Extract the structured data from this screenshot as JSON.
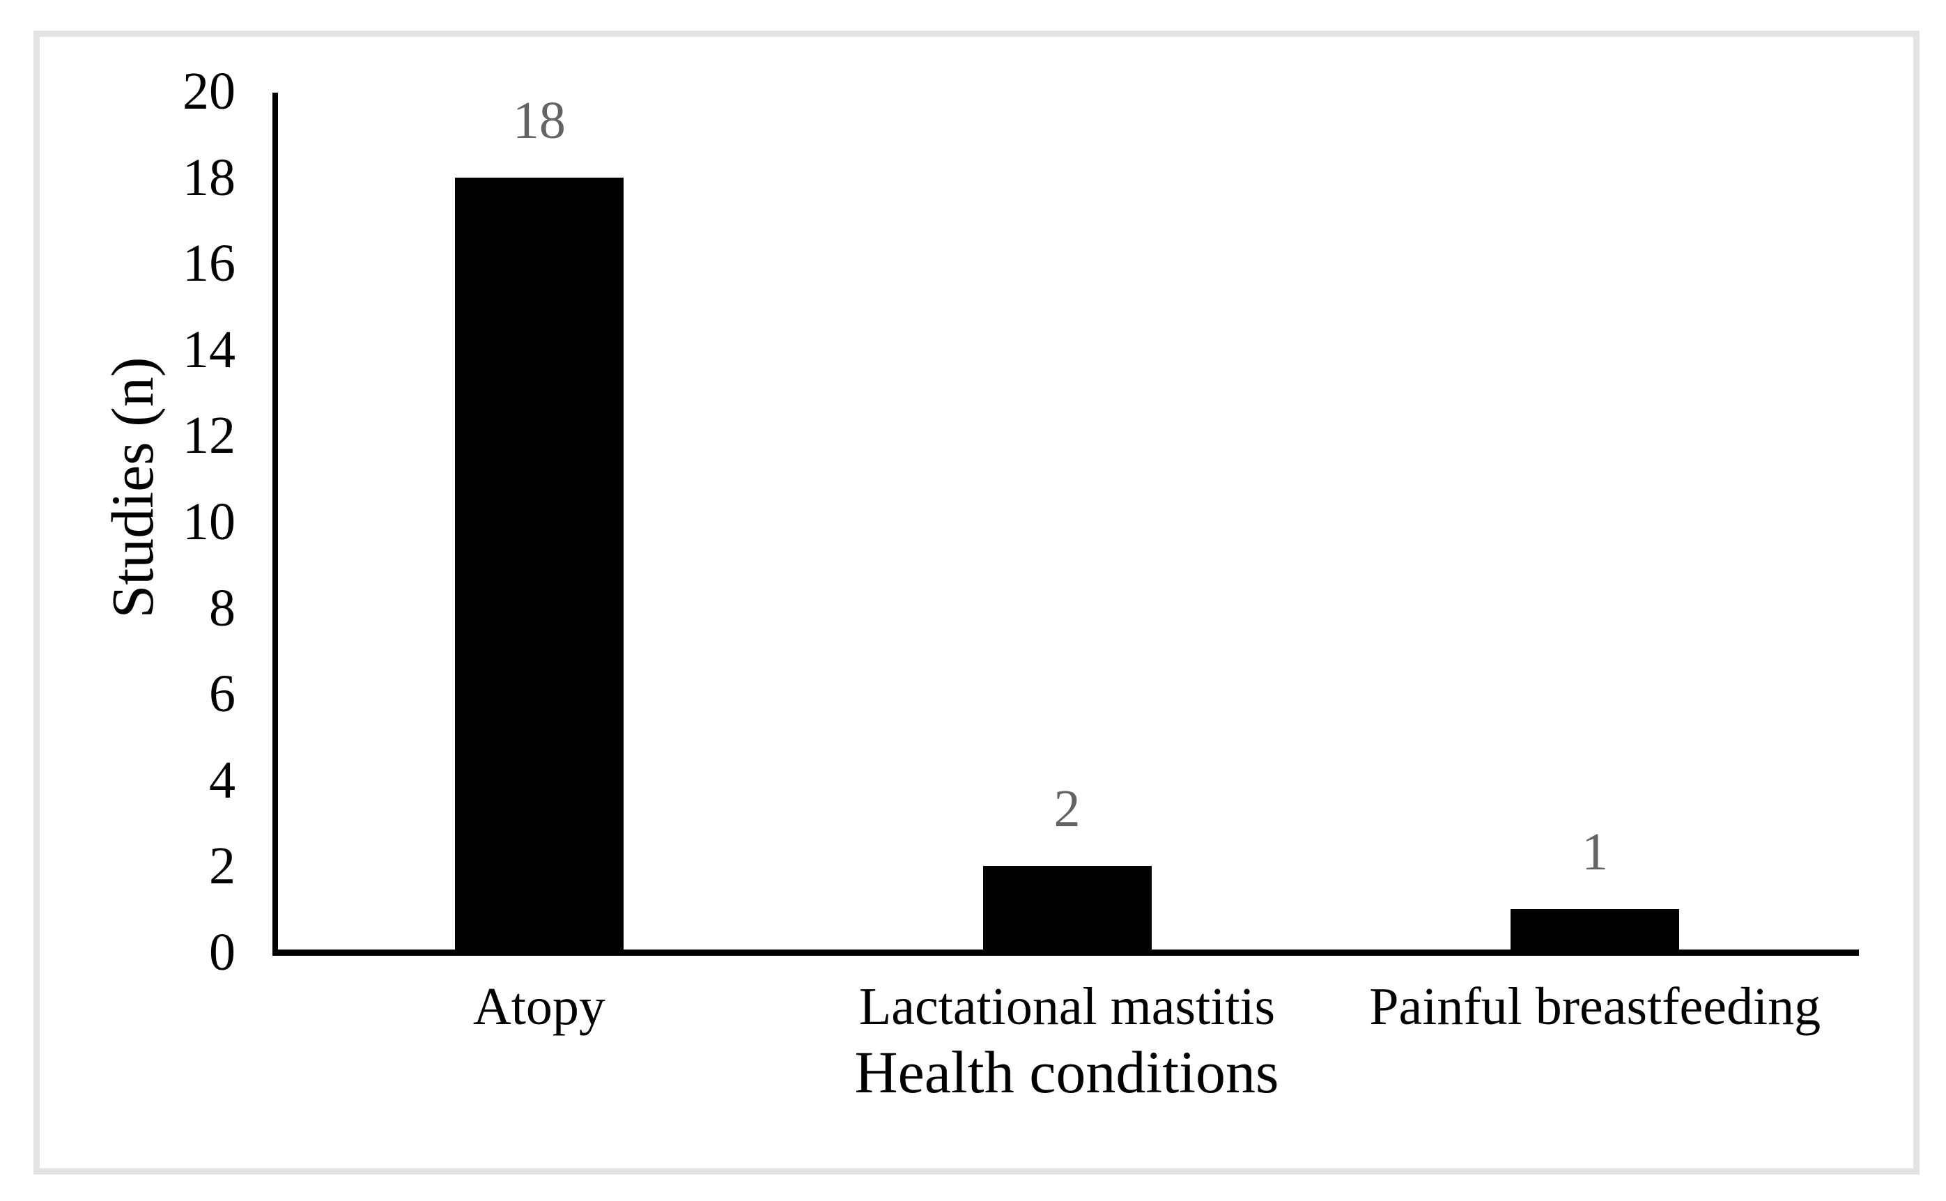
{
  "figure": {
    "background": "#ffffff",
    "frame_color": "#e3e3e3"
  },
  "chart_data": {
    "type": "bar",
    "title": "",
    "categories": [
      "Atopy",
      "Lactational mastitis",
      "Painful breastfeeding"
    ],
    "values": [
      18,
      2,
      1
    ],
    "data_labels": [
      "18",
      "2",
      "1"
    ],
    "xlabel": "Health conditions",
    "ylabel": "Studies (n)",
    "ylim": [
      0,
      20
    ],
    "yticks": [
      0,
      2,
      4,
      6,
      8,
      10,
      12,
      14,
      16,
      18,
      20
    ],
    "grid": "off",
    "legend": "none",
    "bar_color": "#000000",
    "data_label_color": "#636363",
    "axis_color": "#000000"
  }
}
